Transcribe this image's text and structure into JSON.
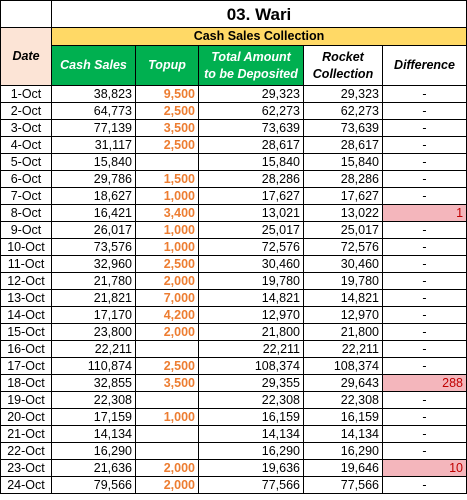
{
  "sheet": {
    "title": "03. Wari",
    "subtitle": "Cash Sales Collection",
    "headers": {
      "date": "Date",
      "cash_sales": "Cash Sales",
      "topup": "Topup",
      "total_1": "Total Amount",
      "total_2": "to be Deposited",
      "rocket_1": "Rocket",
      "rocket_2": "Collection",
      "difference": "Difference"
    },
    "rows": [
      {
        "date": "1-Oct",
        "cash": "38,823",
        "topup": "9,500",
        "total": "29,323",
        "rocket": "29,323",
        "diff": "-"
      },
      {
        "date": "2-Oct",
        "cash": "64,773",
        "topup": "2,500",
        "total": "62,273",
        "rocket": "62,273",
        "diff": "-"
      },
      {
        "date": "3-Oct",
        "cash": "77,139",
        "topup": "3,500",
        "total": "73,639",
        "rocket": "73,639",
        "diff": "-"
      },
      {
        "date": "4-Oct",
        "cash": "31,117",
        "topup": "2,500",
        "total": "28,617",
        "rocket": "28,617",
        "diff": "-"
      },
      {
        "date": "5-Oct",
        "cash": "15,840",
        "topup": "",
        "total": "15,840",
        "rocket": "15,840",
        "diff": "-"
      },
      {
        "date": "6-Oct",
        "cash": "29,786",
        "topup": "1,500",
        "total": "28,286",
        "rocket": "28,286",
        "diff": "-"
      },
      {
        "date": "7-Oct",
        "cash": "18,627",
        "topup": "1,000",
        "total": "17,627",
        "rocket": "17,627",
        "diff": "-"
      },
      {
        "date": "8-Oct",
        "cash": "16,421",
        "topup": "3,400",
        "total": "13,021",
        "rocket": "13,022",
        "diff": "1",
        "highlight": true
      },
      {
        "date": "9-Oct",
        "cash": "26,017",
        "topup": "1,000",
        "total": "25,017",
        "rocket": "25,017",
        "diff": "-"
      },
      {
        "date": "10-Oct",
        "cash": "73,576",
        "topup": "1,000",
        "total": "72,576",
        "rocket": "72,576",
        "diff": "-"
      },
      {
        "date": "11-Oct",
        "cash": "32,960",
        "topup": "2,500",
        "total": "30,460",
        "rocket": "30,460",
        "diff": "-"
      },
      {
        "date": "12-Oct",
        "cash": "21,780",
        "topup": "2,000",
        "total": "19,780",
        "rocket": "19,780",
        "diff": "-"
      },
      {
        "date": "13-Oct",
        "cash": "21,821",
        "topup": "7,000",
        "total": "14,821",
        "rocket": "14,821",
        "diff": "-"
      },
      {
        "date": "14-Oct",
        "cash": "17,170",
        "topup": "4,200",
        "total": "12,970",
        "rocket": "12,970",
        "diff": "-"
      },
      {
        "date": "15-Oct",
        "cash": "23,800",
        "topup": "2,000",
        "total": "21,800",
        "rocket": "21,800",
        "diff": "-"
      },
      {
        "date": "16-Oct",
        "cash": "22,211",
        "topup": "",
        "total": "22,211",
        "rocket": "22,211",
        "diff": "-"
      },
      {
        "date": "17-Oct",
        "cash": "110,874",
        "topup": "2,500",
        "total": "108,374",
        "rocket": "108,374",
        "diff": "-"
      },
      {
        "date": "18-Oct",
        "cash": "32,855",
        "topup": "3,500",
        "total": "29,355",
        "rocket": "29,643",
        "diff": "288",
        "highlight": true
      },
      {
        "date": "19-Oct",
        "cash": "22,308",
        "topup": "",
        "total": "22,308",
        "rocket": "22,308",
        "diff": "-"
      },
      {
        "date": "20-Oct",
        "cash": "17,159",
        "topup": "1,000",
        "total": "16,159",
        "rocket": "16,159",
        "diff": "-"
      },
      {
        "date": "21-Oct",
        "cash": "14,134",
        "topup": "",
        "total": "14,134",
        "rocket": "14,134",
        "diff": "-"
      },
      {
        "date": "22-Oct",
        "cash": "16,290",
        "topup": "",
        "total": "16,290",
        "rocket": "16,290",
        "diff": "-"
      },
      {
        "date": "23-Oct",
        "cash": "21,636",
        "topup": "2,000",
        "total": "19,636",
        "rocket": "19,646",
        "diff": "10",
        "highlight": true
      },
      {
        "date": "24-Oct",
        "cash": "79,566",
        "topup": "2,000",
        "total": "77,566",
        "rocket": "77,566",
        "diff": "-"
      }
    ]
  },
  "colors": {
    "title_bar": "#ffd966",
    "date_header": "#fce4d6",
    "green_header": "#00b050",
    "topup_text": "#ed7d31",
    "diff_highlight_bg": "#f4b6bc",
    "diff_highlight_text": "#c00000"
  }
}
